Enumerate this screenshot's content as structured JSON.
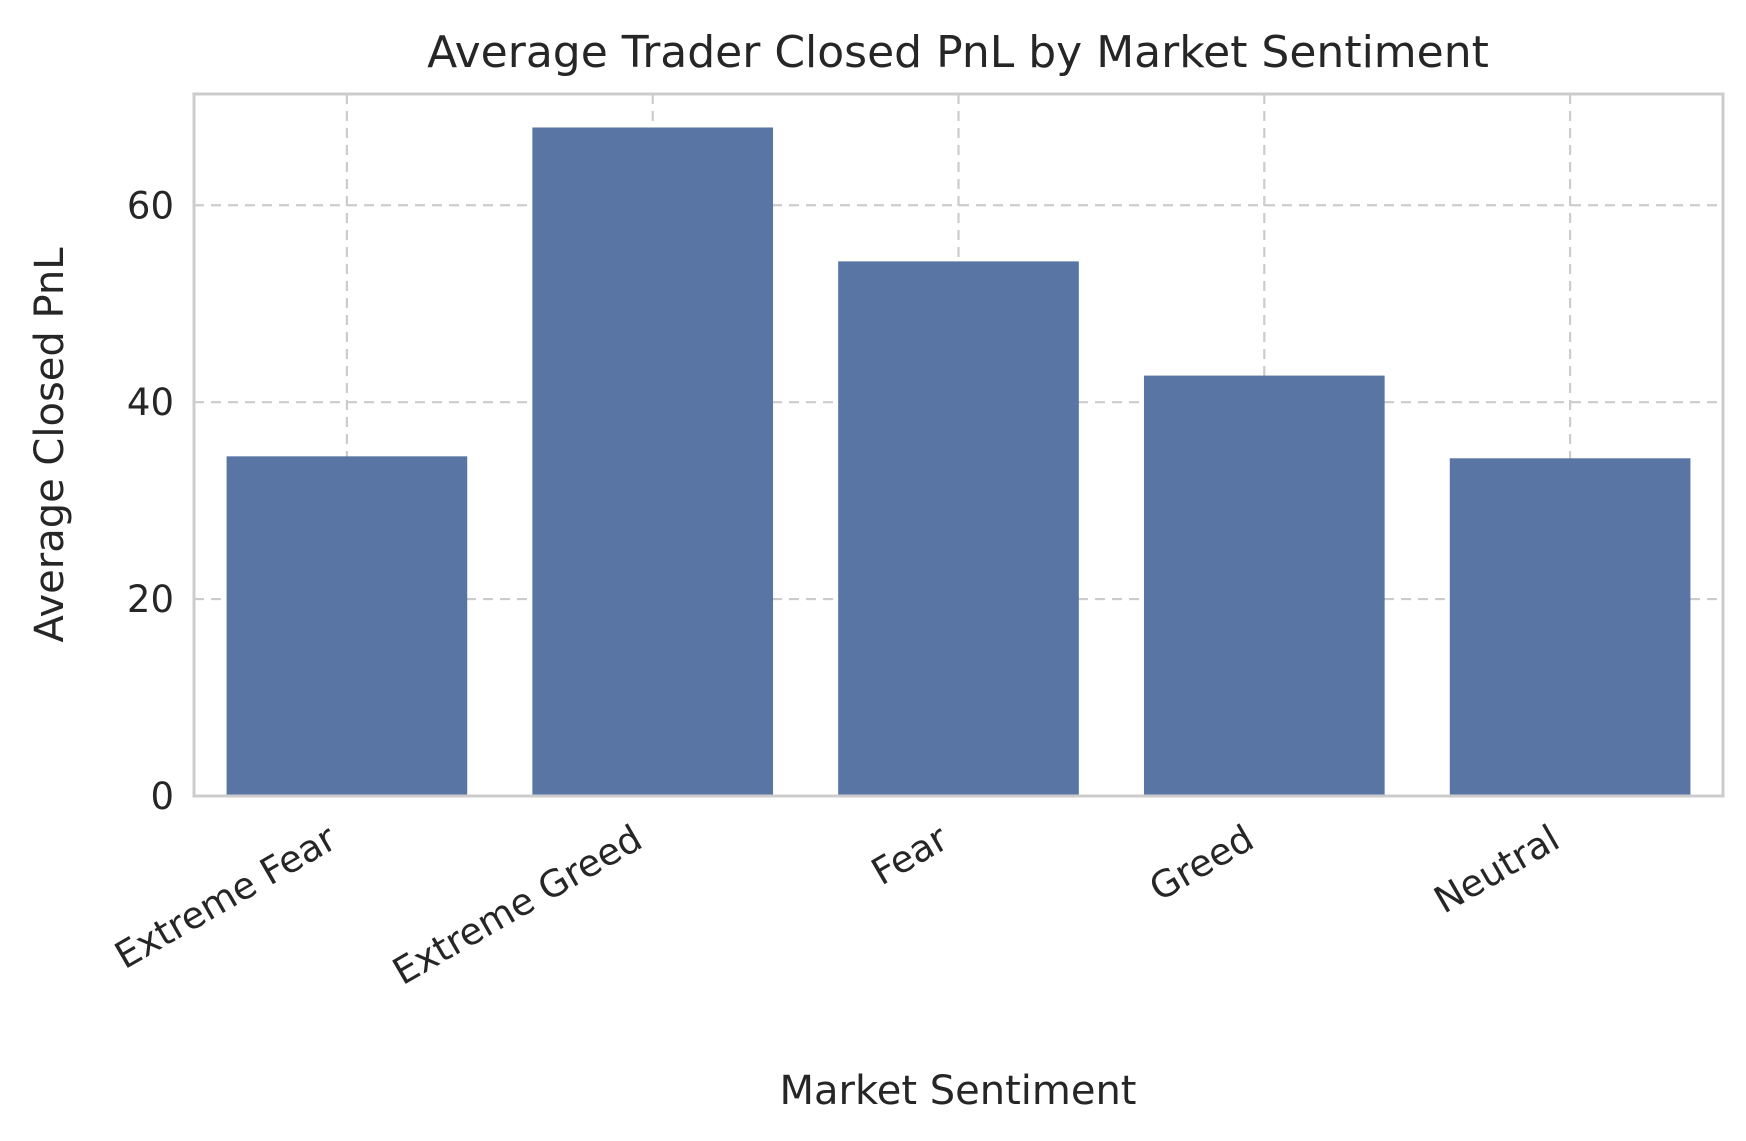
{
  "chart_data": {
    "type": "bar",
    "title": "Average Trader Closed PnL by Market Sentiment",
    "xlabel": "Market Sentiment",
    "ylabel": "Average Closed PnL",
    "categories": [
      "Extreme Fear",
      "Extreme Greed",
      "Fear",
      "Greed",
      "Neutral"
    ],
    "values": [
      34.5,
      67.9,
      54.3,
      42.7,
      34.3
    ],
    "ylim": [
      0,
      71.3
    ],
    "yticks": [
      0,
      20,
      40,
      60
    ],
    "ytick_labels": [
      "0",
      "20",
      "40",
      "60"
    ],
    "bar_color": "#5975a4",
    "grid": true,
    "grid_style": "dashed"
  }
}
